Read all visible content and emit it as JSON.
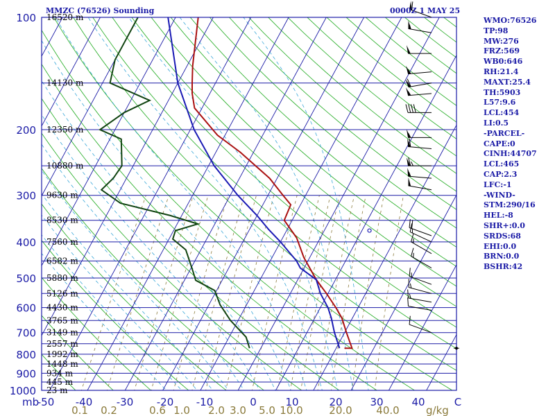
{
  "header": {
    "station_title": "MMZC (76526) Sounding",
    "time_title": "0000Z  1 MAY 25"
  },
  "stats": [
    "WMO:76526",
    "TP:98",
    "MW:276",
    "FRZ:569",
    "WB0:646",
    "RH:21.4",
    "MAXT:25.4",
    "TH:5903",
    "L57:9.6",
    "LCL:454",
    "LI:0.5",
    "-PARCEL-",
    "CAPE:0",
    "CINH:44707",
    "LCL:465",
    "CAP:2.3",
    "LFC:-1",
    "-WIND-",
    "STM:290/16",
    "HEL:-8",
    "SHR+:0.0",
    "SRDS:68",
    "EHI:0.0",
    "BRN:0.0",
    "BSHR:42"
  ],
  "chart_data": {
    "type": "line",
    "title": "MMZC (76526) Sounding",
    "subtitle": "0000Z  1 MAY 25",
    "y_scale": "log pressure",
    "ylim": [
      1000,
      100
    ],
    "xlim": [
      -50,
      60
    ],
    "pressure_ticks": [
      100,
      200,
      300,
      400,
      500,
      600,
      700,
      800,
      900,
      1000
    ],
    "pressure_unit": "mb",
    "temp_ticks": [
      "-50",
      "-40",
      "-30",
      "-20",
      "-10",
      "0",
      "10",
      "20",
      "30",
      "40",
      "C"
    ],
    "mixing_ratio_ticks": [
      0.1,
      0.2,
      0.6,
      1.0,
      2.0,
      3.0,
      5.0,
      10.0,
      20.0,
      40.0
    ],
    "mixing_ratio_unit": "g/kg",
    "height_labels": [
      {
        "p": 100,
        "label": "16520 m"
      },
      {
        "p": 150,
        "label": "14130 m"
      },
      {
        "p": 200,
        "label": "12350 m"
      },
      {
        "p": 250,
        "label": "10880 m"
      },
      {
        "p": 300,
        "label": "9630 m"
      },
      {
        "p": 350,
        "label": "8530 m"
      },
      {
        "p": 400,
        "label": "7560 m"
      },
      {
        "p": 450,
        "label": "6582 m"
      },
      {
        "p": 500,
        "label": "5880 m"
      },
      {
        "p": 550,
        "label": "5126 m"
      },
      {
        "p": 600,
        "label": "4430 m"
      },
      {
        "p": 650,
        "label": "3765 m"
      },
      {
        "p": 700,
        "label": "3149 m"
      },
      {
        "p": 750,
        "label": "2557 m"
      },
      {
        "p": 800,
        "label": "1992 m"
      },
      {
        "p": 850,
        "label": "1448 m"
      },
      {
        "p": 900,
        "label": "934 m"
      },
      {
        "p": 950,
        "label": "445 m"
      },
      {
        "p": 1000,
        "label": "23 m"
      }
    ],
    "series": [
      {
        "key": "temperature",
        "color": "#aa1111",
        "points": [
          [
            771,
            22.2
          ],
          [
            771,
            24.2
          ],
          [
            700,
            20.5
          ],
          [
            640,
            17.2
          ],
          [
            600,
            14.1
          ],
          [
            550,
            9.6
          ],
          [
            505,
            4.9
          ],
          [
            440,
            -1.6
          ],
          [
            390,
            -6.3
          ],
          [
            350,
            -12.1
          ],
          [
            318,
            -12.6
          ],
          [
            300,
            -16.0
          ],
          [
            270,
            -22.0
          ],
          [
            230,
            -33.5
          ],
          [
            207,
            -42.0
          ],
          [
            175,
            -52.0
          ],
          [
            160,
            -54.7
          ],
          [
            150,
            -56.2
          ],
          [
            135,
            -58.5
          ],
          [
            100,
            -64.0
          ]
        ]
      },
      {
        "key": "dewpoint",
        "color": "#114411",
        "points": [
          [
            771,
            -3.0
          ],
          [
            720,
            -5.5
          ],
          [
            650,
            -12.0
          ],
          [
            590,
            -17.0
          ],
          [
            540,
            -20.5
          ],
          [
            507,
            -27.0
          ],
          [
            480,
            -29.0
          ],
          [
            420,
            -34.0
          ],
          [
            393,
            -39.0
          ],
          [
            373,
            -39.5
          ],
          [
            358,
            -34.5
          ],
          [
            340,
            -43.0
          ],
          [
            315,
            -58.0
          ],
          [
            290,
            -65.0
          ],
          [
            270,
            -63.5
          ],
          [
            250,
            -63.0
          ],
          [
            212,
            -67.0
          ],
          [
            200,
            -74.0
          ],
          [
            180,
            -70.0
          ],
          [
            167,
            -65.0
          ],
          [
            150,
            -78.0
          ],
          [
            130,
            -80.0
          ],
          [
            100,
            -80.0
          ]
        ]
      },
      {
        "key": "parcel",
        "color": "#1a1ab4",
        "points": [
          [
            771,
            20.9
          ],
          [
            700,
            17.3
          ],
          [
            640,
            14.4
          ],
          [
            600,
            12.0
          ],
          [
            550,
            8.0
          ],
          [
            505,
            4.9
          ],
          [
            470,
            -1.0
          ],
          [
            450,
            -3.0
          ],
          [
            400,
            -10.0
          ],
          [
            370,
            -15.0
          ],
          [
            340,
            -20.0
          ],
          [
            300,
            -28.0
          ],
          [
            250,
            -38.5
          ],
          [
            200,
            -49.0
          ],
          [
            150,
            -60.0
          ],
          [
            100,
            -72.0
          ]
        ]
      }
    ],
    "surface_pressure": 771,
    "wind_barbs": [
      {
        "p": 100,
        "dir": 290,
        "spd": 60
      },
      {
        "p": 110,
        "dir": 280,
        "spd": 55
      },
      {
        "p": 125,
        "dir": 270,
        "spd": 50
      },
      {
        "p": 140,
        "dir": 265,
        "spd": 55
      },
      {
        "p": 150,
        "dir": 260,
        "spd": 60
      },
      {
        "p": 160,
        "dir": 265,
        "spd": 55
      },
      {
        "p": 180,
        "dir": 270,
        "spd": 40
      },
      {
        "p": 210,
        "dir": 270,
        "spd": 55
      },
      {
        "p": 225,
        "dir": 275,
        "spd": 60
      },
      {
        "p": 250,
        "dir": 270,
        "spd": 65
      },
      {
        "p": 270,
        "dir": 275,
        "spd": 55
      },
      {
        "p": 290,
        "dir": 280,
        "spd": 50
      },
      {
        "p": 385,
        "dir": 290,
        "spd": 20
      },
      {
        "p": 400,
        "dir": 295,
        "spd": 15
      },
      {
        "p": 430,
        "dir": 300,
        "spd": 15
      },
      {
        "p": 470,
        "dir": 300,
        "spd": 15
      },
      {
        "p": 520,
        "dir": 290,
        "spd": 15
      },
      {
        "p": 550,
        "dir": 285,
        "spd": 15
      },
      {
        "p": 580,
        "dir": 280,
        "spd": 15
      },
      {
        "p": 610,
        "dir": 280,
        "spd": 10
      },
      {
        "p": 700,
        "dir": 290,
        "spd": 10
      }
    ]
  }
}
